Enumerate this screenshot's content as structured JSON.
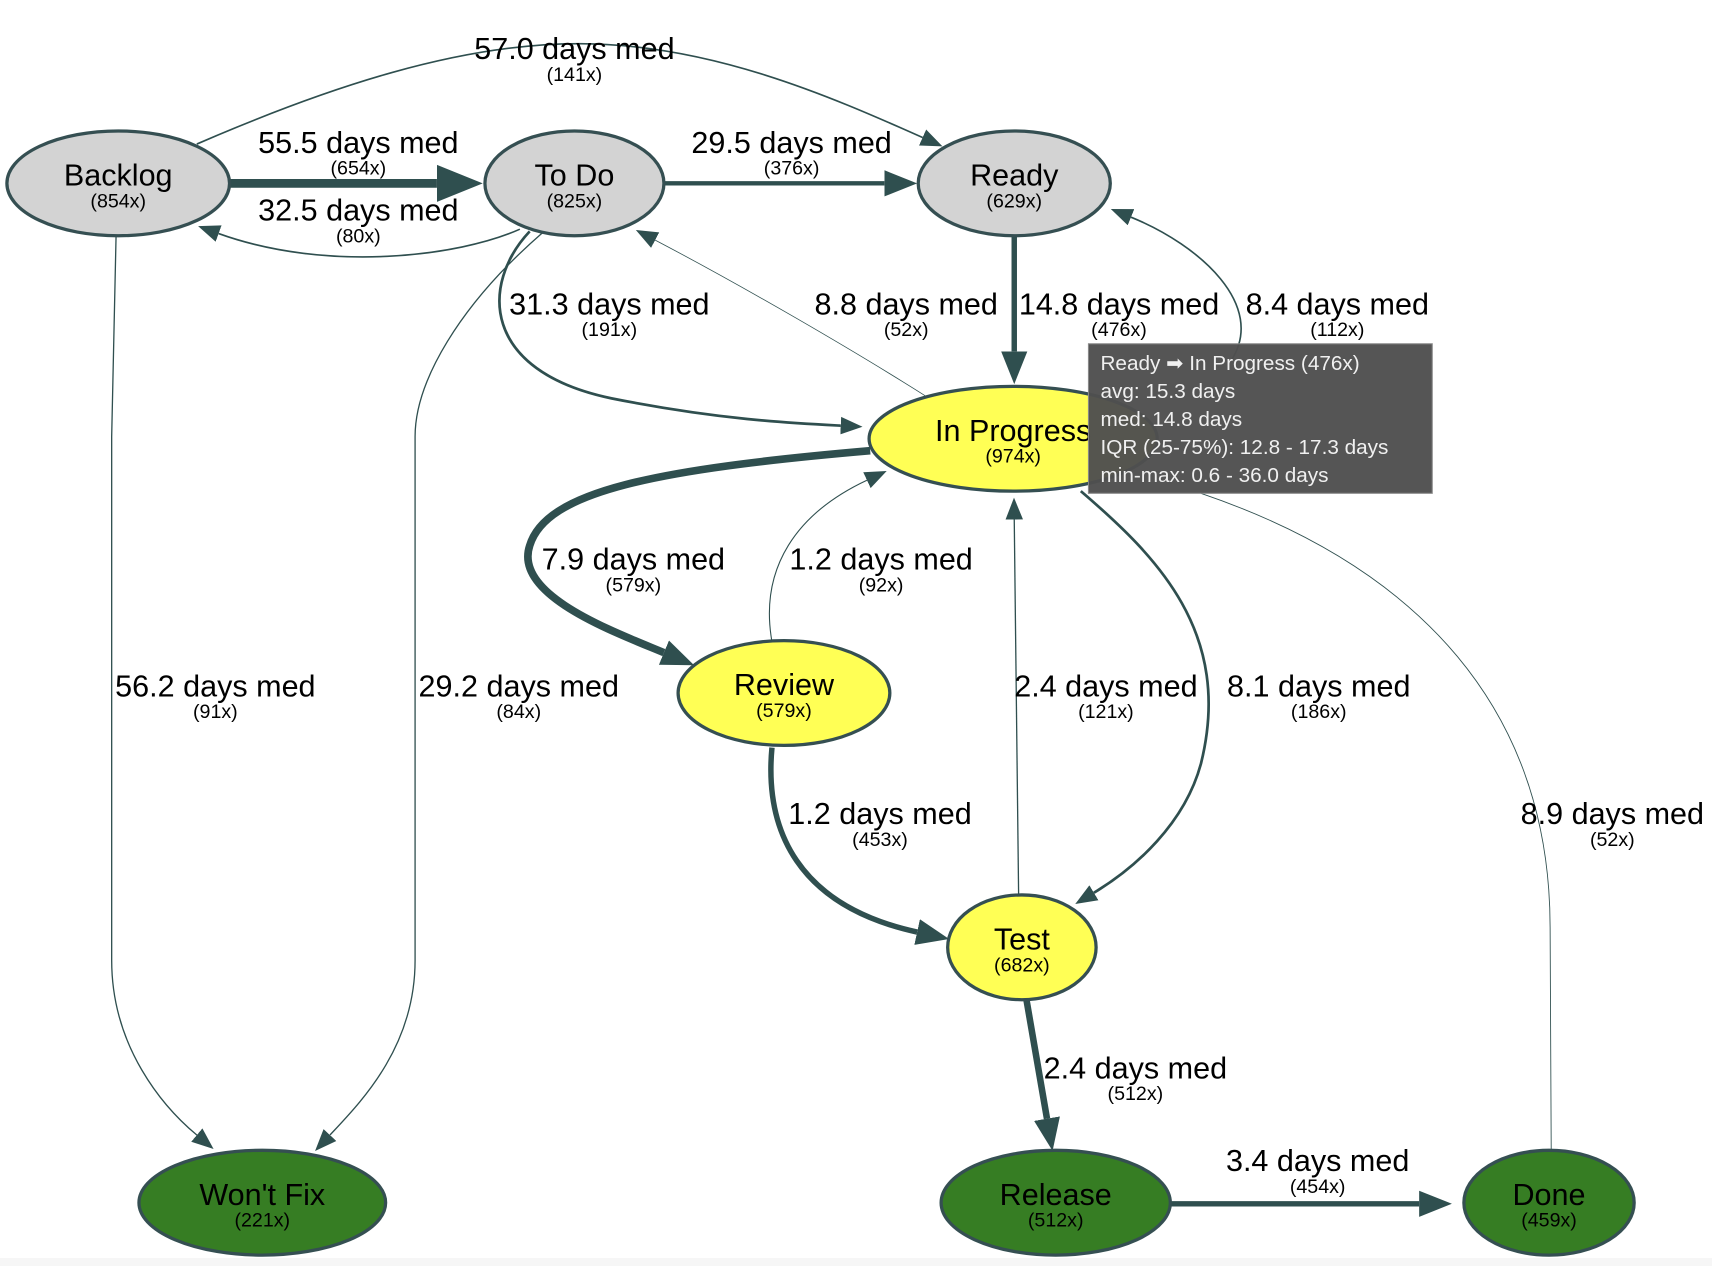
{
  "colors": {
    "inactive": "#d3d3d3",
    "active": "#ffff55",
    "done": "#367d23",
    "edge": "#2f4f4f",
    "tooltip_bg": "#4f4f4f",
    "tooltip_text": "#f0f0f0"
  },
  "nodes": [
    {
      "id": "backlog",
      "label": "Backlog",
      "count": "(854x)",
      "category": "inactive"
    },
    {
      "id": "todo",
      "label": "To Do",
      "count": "(825x)",
      "category": "inactive"
    },
    {
      "id": "ready",
      "label": "Ready",
      "count": "(629x)",
      "category": "inactive"
    },
    {
      "id": "inprogress",
      "label": "In Progress",
      "count": "(974x)",
      "category": "active"
    },
    {
      "id": "review",
      "label": "Review",
      "count": "(579x)",
      "category": "active"
    },
    {
      "id": "test",
      "label": "Test",
      "count": "(682x)",
      "category": "active"
    },
    {
      "id": "wontfix",
      "label": "Won't Fix",
      "count": "(221x)",
      "category": "done"
    },
    {
      "id": "release",
      "label": "Release",
      "count": "(512x)",
      "category": "done"
    },
    {
      "id": "done",
      "label": "Done",
      "count": "(459x)",
      "category": "done"
    }
  ],
  "edges": [
    {
      "from": "backlog",
      "to": "ready",
      "label": "57.0 days med",
      "count": "(141x)"
    },
    {
      "from": "backlog",
      "to": "todo",
      "label": "55.5 days med",
      "count": "(654x)"
    },
    {
      "from": "todo",
      "to": "backlog",
      "label": "32.5 days med",
      "count": "(80x)"
    },
    {
      "from": "todo",
      "to": "ready",
      "label": "29.5 days med",
      "count": "(376x)"
    },
    {
      "from": "todo",
      "to": "inprogress",
      "label": "31.3 days med",
      "count": "(191x)"
    },
    {
      "from": "inprogress",
      "to": "todo",
      "label": "8.8 days med",
      "count": "(52x)"
    },
    {
      "from": "ready",
      "to": "inprogress",
      "label": "14.8 days med",
      "count": "(476x)"
    },
    {
      "from": "inprogress",
      "to": "ready",
      "label": "8.4 days med",
      "count": "(112x)"
    },
    {
      "from": "inprogress",
      "to": "review",
      "label": "7.9 days med",
      "count": "(579x)"
    },
    {
      "from": "review",
      "to": "inprogress",
      "label": "1.2 days med",
      "count": "(92x)"
    },
    {
      "from": "backlog",
      "to": "wontfix",
      "label": "56.2 days med",
      "count": "(91x)"
    },
    {
      "from": "todo",
      "to": "wontfix",
      "label": "29.2 days med",
      "count": "(84x)"
    },
    {
      "from": "test",
      "to": "inprogress",
      "label": "2.4 days med",
      "count": "(121x)"
    },
    {
      "from": "inprogress",
      "to": "test",
      "label": "8.1 days med",
      "count": "(186x)"
    },
    {
      "from": "review",
      "to": "test",
      "label": "1.2 days med",
      "count": "(453x)"
    },
    {
      "from": "test",
      "to": "release",
      "label": "2.4 days med",
      "count": "(512x)"
    },
    {
      "from": "release",
      "to": "done",
      "label": "3.4 days med",
      "count": "(454x)"
    },
    {
      "from": "inprogress",
      "to": "done",
      "label": "8.9 days med",
      "count": "(52x)"
    }
  ],
  "tooltip": {
    "lines": [
      "Ready ➡ In Progress (476x)",
      "avg: 15.3 days",
      "med: 14.8 days",
      "IQR (25-75%): 12.8 - 17.3 days",
      "min-max: 0.6 - 36.0 days"
    ]
  }
}
